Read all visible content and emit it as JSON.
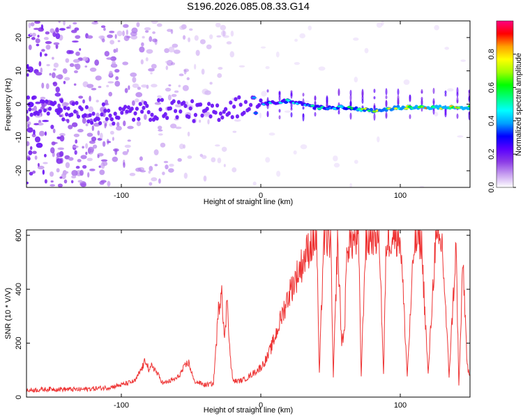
{
  "title": "S196.2026.085.08.33.G14",
  "chart_data": [
    {
      "type": "heatmap",
      "xlabel": "Height of straight line (km)",
      "ylabel": "Frequency (Hz)",
      "xlim": [
        -168,
        150
      ],
      "ylim": [
        -25,
        25
      ],
      "x_ticks": [
        -100,
        0,
        100
      ],
      "y_ticks": [
        -20,
        -10,
        0,
        10,
        20
      ],
      "grid": false,
      "colorbar": {
        "label": "Normalized spectral amplitude",
        "range": [
          0.0,
          1.0
        ],
        "ticks": [
          "0.0",
          "0.2",
          "0.4",
          "0.6",
          "0.8"
        ],
        "colors": [
          "#ffffff",
          "#c8a0f0",
          "#8c3ce6",
          "#5a00ff",
          "#0000ff",
          "#00a0ff",
          "#00ffff",
          "#00ff80",
          "#00ff00",
          "#a0ff00",
          "#ffff00",
          "#ffa000",
          "#ff0000",
          "#ff0080"
        ]
      },
      "ridge": [
        {
          "x": -168,
          "f": 0,
          "amp": 0.05
        },
        {
          "x": -120,
          "f": -3,
          "amp": 0.15
        },
        {
          "x": -100,
          "f": -3,
          "amp": 0.2
        },
        {
          "x": -80,
          "f": -2,
          "amp": 0.22
        },
        {
          "x": -60,
          "f": -1,
          "amp": 0.25
        },
        {
          "x": -40,
          "f": -3,
          "amp": 0.25
        },
        {
          "x": -20,
          "f": -1,
          "amp": 0.28
        },
        {
          "x": -8,
          "f": 0,
          "amp": 0.3
        },
        {
          "x": 0,
          "f": 0,
          "amp": 0.45
        },
        {
          "x": 20,
          "f": 1,
          "amp": 0.5
        },
        {
          "x": 40,
          "f": -1,
          "amp": 0.55
        },
        {
          "x": 60,
          "f": -1,
          "amp": 0.6
        },
        {
          "x": 80,
          "f": -2,
          "amp": 0.7
        },
        {
          "x": 100,
          "f": -1,
          "amp": 0.75
        },
        {
          "x": 120,
          "f": -1,
          "amp": 0.8
        },
        {
          "x": 150,
          "f": -1,
          "amp": 0.8
        }
      ]
    },
    {
      "type": "line",
      "xlabel": "Height of straight line (km)",
      "ylabel": "SNR (10 * V/V)",
      "xlim": [
        -168,
        150
      ],
      "ylim": [
        0,
        620
      ],
      "x_ticks": [
        -100,
        0,
        100
      ],
      "y_ticks": [
        0,
        200,
        400,
        600
      ],
      "grid": false,
      "series": [
        {
          "color": "#ee3333",
          "x": [
            -168,
            -150,
            -130,
            -110,
            -100,
            -90,
            -82,
            -80,
            -78,
            -70,
            -60,
            -52,
            -50,
            -48,
            -40,
            -34,
            -30,
            -28,
            -26,
            -24,
            -22,
            -20,
            -15,
            -10,
            0,
            5,
            10,
            15,
            20,
            25,
            30,
            35,
            40,
            42,
            45,
            50,
            52,
            55,
            58,
            60,
            62,
            65,
            70,
            72,
            75,
            80,
            85,
            88,
            90,
            95,
            100,
            105,
            110,
            115,
            120,
            125,
            130,
            135,
            140,
            142,
            145,
            148,
            150
          ],
          "y": [
            25,
            30,
            28,
            35,
            45,
            60,
            140,
            90,
            120,
            50,
            70,
            130,
            100,
            60,
            45,
            50,
            340,
            420,
            200,
            380,
            150,
            60,
            60,
            70,
            110,
            150,
            220,
            300,
            380,
            440,
            500,
            560,
            590,
            80,
            580,
            590,
            70,
            580,
            200,
            250,
            570,
            580,
            590,
            80,
            560,
            610,
            600,
            80,
            580,
            610,
            600,
            80,
            570,
            590,
            80,
            560,
            570,
            80,
            560,
            40,
            500,
            120,
            60
          ]
        }
      ]
    }
  ]
}
